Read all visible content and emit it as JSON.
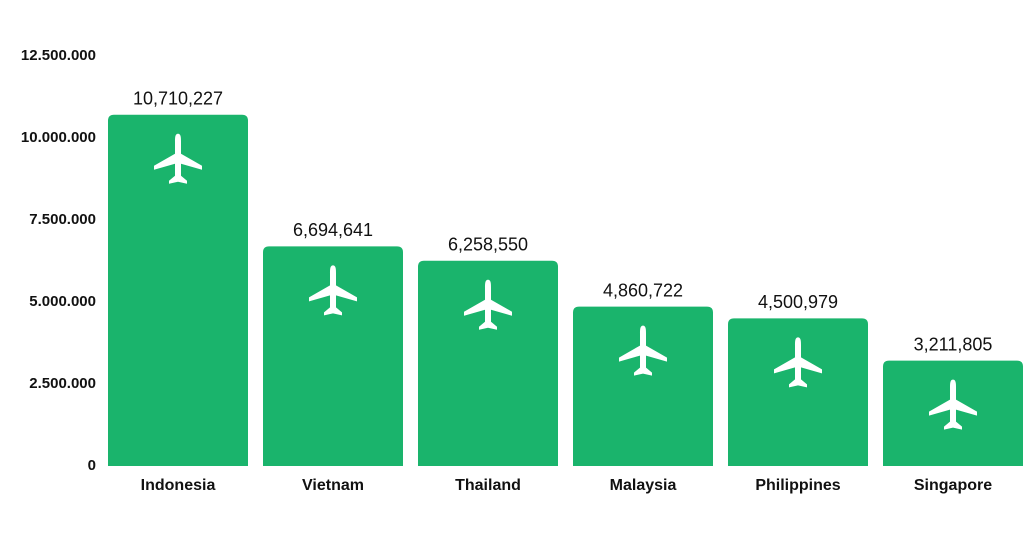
{
  "chart_data": {
    "type": "bar",
    "categories": [
      "Indonesia",
      "Vietnam",
      "Thailand",
      "Malaysia",
      "Philippines",
      "Singapore"
    ],
    "values": [
      10710227,
      6694641,
      6258550,
      4860722,
      4500979,
      3211805
    ],
    "value_labels": [
      "10,710,227",
      "6,694,641",
      "6,258,550",
      "4,860,722",
      "4,500,979",
      "3,211,805"
    ],
    "color": "#1ab46c",
    "ylim": [
      0,
      12500000
    ],
    "yticks": [
      0,
      {
        "value": 2500000,
        "label": "2.500.000"
      },
      {
        "value": 5000000,
        "label": "5.000.000"
      },
      {
        "value": 7500000,
        "label": "7.500.000"
      },
      {
        "value": 10000000,
        "label": "10.000.000"
      },
      {
        "value": 12500000,
        "label": "12.500.000"
      }
    ],
    "grid": false
  }
}
